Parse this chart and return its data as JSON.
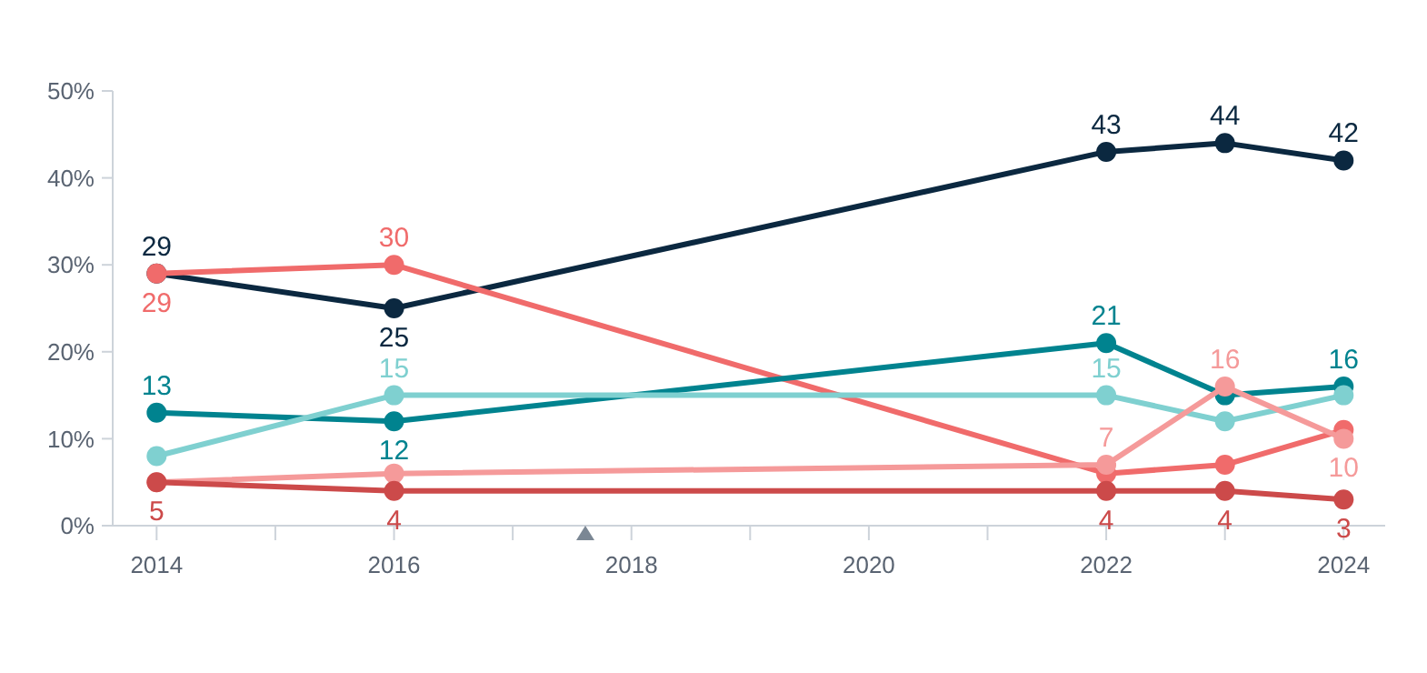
{
  "chart_data": {
    "type": "line",
    "x": [
      2014,
      2016,
      2022,
      2023,
      2024
    ],
    "xlim": [
      2013.63,
      2024.35
    ],
    "xticks": [
      2014,
      {
        "value": 2015,
        "label": null
      },
      2016,
      {
        "value": 2017,
        "label": null
      },
      2018,
      {
        "value": 2019,
        "label": null
      },
      2020,
      {
        "value": 2021,
        "label": null
      },
      2022,
      {
        "value": 2023,
        "label": null
      },
      2024
    ],
    "ylim": [
      0,
      50
    ],
    "yticks": [
      {
        "value": 0,
        "label": "0%"
      },
      {
        "value": 10,
        "label": "10%"
      },
      {
        "value": 20,
        "label": "20%"
      },
      {
        "value": 30,
        "label": "30%"
      },
      {
        "value": 40,
        "label": "40%"
      },
      {
        "value": 50,
        "label": "50%"
      }
    ],
    "grid": false,
    "marker": "circle",
    "line_style": "solid",
    "series": [
      {
        "color": "#0b2840",
        "values": [
          29,
          25,
          43,
          44,
          42
        ],
        "value_labels": [
          "29",
          "25",
          "43",
          "44",
          "42"
        ]
      },
      {
        "color": "#f06b6b",
        "values": [
          29,
          30,
          6,
          7,
          11
        ],
        "value_labels": [
          "29",
          "30",
          null,
          null,
          null
        ]
      },
      {
        "color": "#00838f",
        "values": [
          13,
          12,
          21,
          15,
          16
        ],
        "value_labels": [
          "13",
          "12",
          "21",
          null,
          "16"
        ]
      },
      {
        "color": "#7fd0d0",
        "values": [
          8,
          15,
          15,
          12,
          15
        ],
        "value_labels": [
          null,
          "15",
          "15",
          null,
          null
        ]
      },
      {
        "color": "#f59a9a",
        "values": [
          5,
          6,
          7,
          16,
          10
        ],
        "value_labels": [
          null,
          null,
          "7",
          "16",
          "10"
        ]
      },
      {
        "color": "#cc4a4a",
        "values": [
          5,
          4,
          4,
          4,
          3
        ],
        "value_labels": [
          "5",
          "4",
          "4",
          "4",
          "3"
        ]
      }
    ]
  }
}
